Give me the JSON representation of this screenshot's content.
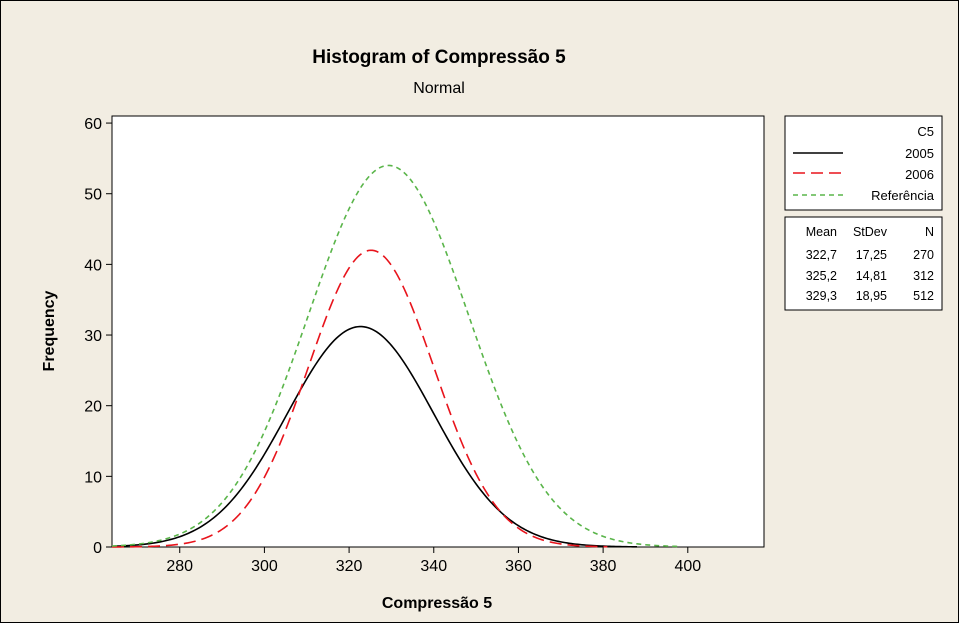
{
  "chart_data": {
    "type": "line",
    "title": "Histogram of Compressão 5",
    "subtitle": "Normal",
    "xlabel": "Compressão 5",
    "ylabel": "Frequency",
    "xlim": [
      264,
      418
    ],
    "ylim": [
      0,
      61
    ],
    "x_ticks": [
      280,
      300,
      320,
      340,
      360,
      380,
      400
    ],
    "y_ticks": [
      0,
      10,
      20,
      30,
      40,
      50,
      60
    ],
    "grid": false,
    "legend_position": "right",
    "legend_title": "C5",
    "series": [
      {
        "name": "2005",
        "color": "#000000",
        "dash": "solid",
        "mean": 322.7,
        "stdev": 17.25,
        "n": 270,
        "peak": 31.2,
        "x_end": 388
      },
      {
        "name": "2006",
        "color": "#e8141c",
        "dash": "long-dash",
        "mean": 325.2,
        "stdev": 14.81,
        "n": 312,
        "peak": 42.0,
        "x_end": 381
      },
      {
        "name": "Referência",
        "color": "#5ab54a",
        "dash": "short-dash",
        "mean": 329.3,
        "stdev": 18.95,
        "n": 512,
        "peak": 54.0,
        "x_end": 398
      }
    ],
    "stats_table": {
      "headers": [
        "Mean",
        "StDev",
        "N"
      ],
      "rows": [
        [
          "322,7",
          "17,25",
          "270"
        ],
        [
          "325,2",
          "14,81",
          "312"
        ],
        [
          "329,3",
          "18,95",
          "512"
        ]
      ]
    }
  },
  "colors": {
    "background": "#f2ede2",
    "plot_area": "#ffffff",
    "border": "#000000"
  }
}
